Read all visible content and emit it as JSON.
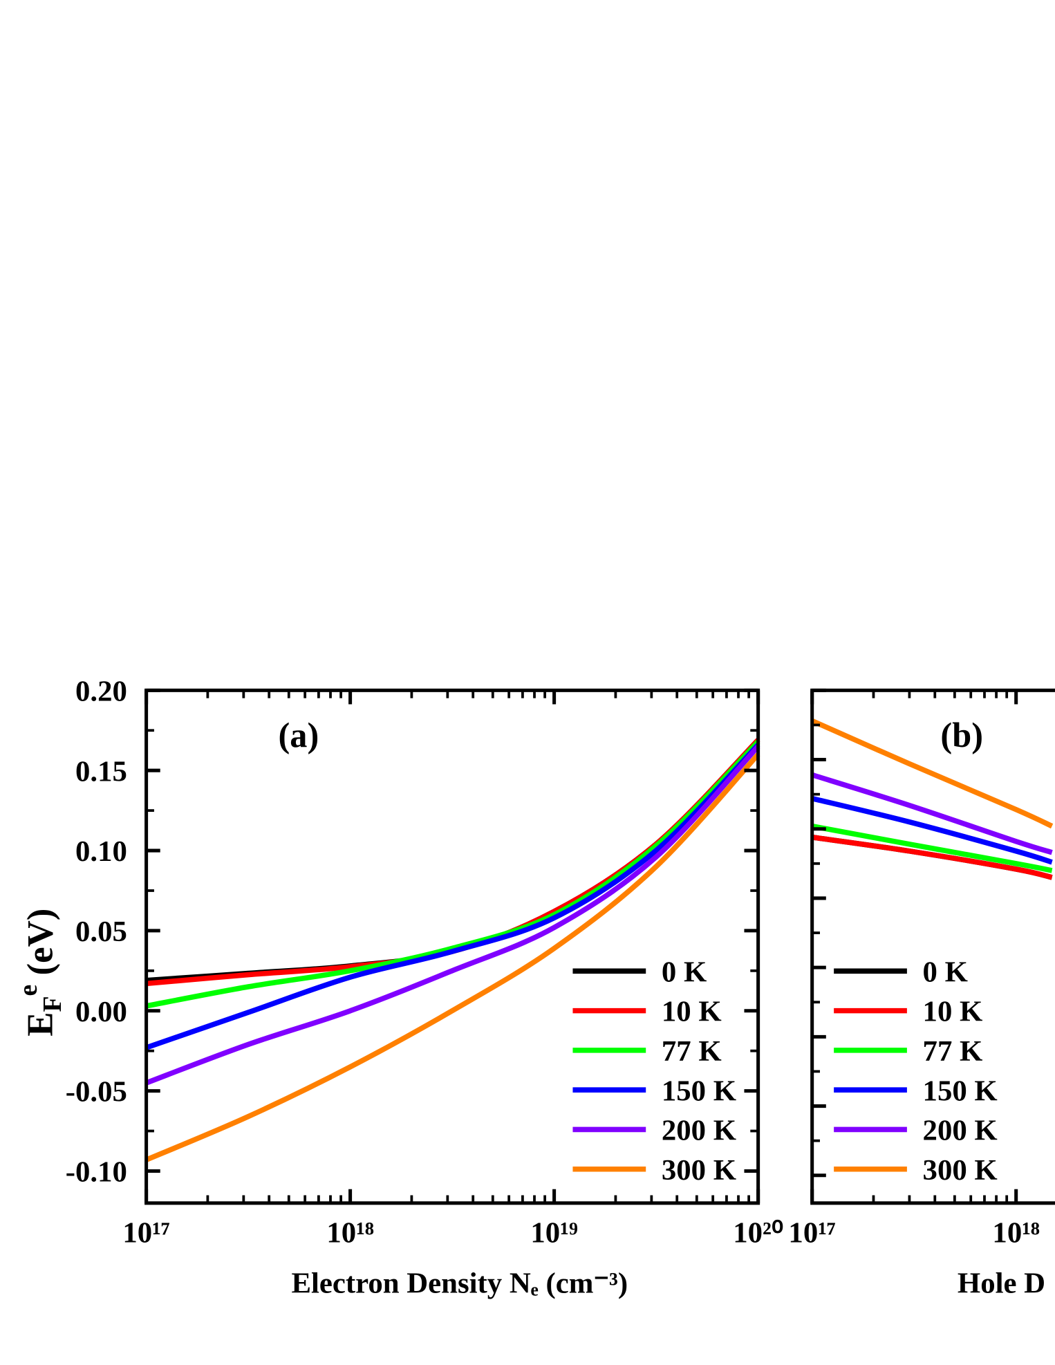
{
  "chart_data": [
    {
      "type": "line",
      "panel_label": "(a)",
      "x_label": "Electron Density Nₑ (cm⁻³)",
      "y_label": [
        "E",
        "F",
        "e",
        " (eV)"
      ],
      "xscale": "log",
      "xlim": [
        1e+17,
        1e+20
      ],
      "xticks": [
        {
          "value": 1e+17,
          "label": "10¹⁷"
        },
        {
          "value": 1e+18,
          "label": "10¹⁸"
        },
        {
          "value": 1e+19,
          "label": "10¹⁹"
        },
        {
          "value": 1e+20,
          "label": "10²⁰"
        }
      ],
      "ylim": [
        -0.12,
        0.2
      ],
      "yticks": [
        {
          "value": -0.1,
          "label": "-0.10"
        },
        {
          "value": -0.05,
          "label": "-0.05"
        },
        {
          "value": 0,
          "label": "0.00"
        },
        {
          "value": 0.05,
          "label": "0.05"
        },
        {
          "value": 0.1,
          "label": "0.10"
        },
        {
          "value": 0.15,
          "label": "0.15"
        },
        {
          "value": 0.2,
          "label": "0.20"
        }
      ],
      "legend": "lower right",
      "x": [
        1e+17,
        3.16e+17,
        1e+18,
        3.16e+18,
        1e+19,
        3.16e+19,
        1e+20
      ],
      "series": [
        {
          "name": "0 K",
          "color": "#000000",
          "values": [
            0.019,
            0.0234,
            0.028,
            0.037,
            0.062,
            0.104,
            0.169
          ]
        },
        {
          "name": "10 K",
          "color": "#ff0000",
          "values": [
            0.017,
            0.0225,
            0.0275,
            0.037,
            0.062,
            0.104,
            0.169
          ]
        },
        {
          "name": "77 K",
          "color": "#00ff00",
          "values": [
            0.003,
            0.015,
            0.025,
            0.039,
            0.06,
            0.103,
            0.168
          ]
        },
        {
          "name": "150 K",
          "color": "#0000ff",
          "values": [
            -0.023,
            -0.001,
            0.021,
            0.037,
            0.058,
            0.1,
            0.166
          ]
        },
        {
          "name": "200 K",
          "color": "#8000ff",
          "values": [
            -0.045,
            -0.021,
            0.0,
            0.025,
            0.052,
            0.096,
            0.165
          ]
        },
        {
          "name": "300 K",
          "color": "#ff8000",
          "values": [
            -0.093,
            -0.066,
            -0.035,
            0.0,
            0.039,
            0.09,
            0.16
          ]
        }
      ]
    },
    {
      "type": "line",
      "panel_label": "(b)",
      "x_label": "Hole D",
      "xscale": "log",
      "xlim": [
        1e+17,
        1e+20
      ],
      "xticks": [
        {
          "value": 1e+17,
          "label": "10¹⁷"
        },
        {
          "value": 1e+18,
          "label": "10¹⁸"
        }
      ],
      "ylim": [
        -0.12,
        0.25
      ],
      "yticks": [
        -0.1,
        -0.05,
        0,
        0.05,
        0.1,
        0.15,
        0.2,
        0.25
      ],
      "legend": "lower left",
      "x": [
        1e+17,
        3e+17,
        1e+18,
        1.5e+18
      ],
      "series": [
        {
          "name": "0 K",
          "color": "#000000",
          "values": [
            0.144,
            0.134,
            0.121,
            0.115
          ]
        },
        {
          "name": "10 K",
          "color": "#ff0000",
          "values": [
            0.144,
            0.134,
            0.121,
            0.115
          ]
        },
        {
          "name": "77 K",
          "color": "#00ff00",
          "values": [
            0.152,
            0.139,
            0.125,
            0.12
          ]
        },
        {
          "name": "150 K",
          "color": "#0000ff",
          "values": [
            0.172,
            0.155,
            0.134,
            0.126
          ]
        },
        {
          "name": "200 K",
          "color": "#8000ff",
          "values": [
            0.189,
            0.167,
            0.141,
            0.133
          ]
        },
        {
          "name": "300 K",
          "color": "#ff8000",
          "values": [
            0.228,
            0.197,
            0.164,
            0.152
          ]
        }
      ]
    }
  ]
}
